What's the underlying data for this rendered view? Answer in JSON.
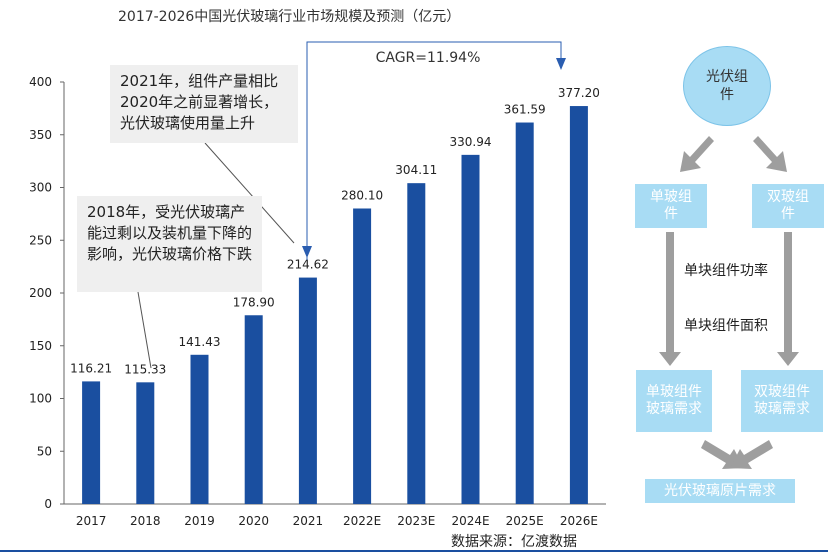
{
  "chart_data": {
    "type": "bar",
    "title": "2017-2026中国光伏玻璃行业市场规模及预测（亿元）",
    "categories": [
      "2017",
      "2018",
      "2019",
      "2020",
      "2021",
      "2022E",
      "2023E",
      "2024E",
      "2025E",
      "2026E"
    ],
    "values": [
      116.21,
      115.33,
      141.43,
      178.9,
      214.62,
      280.1,
      304.11,
      330.94,
      361.59,
      377.2
    ],
    "value_labels": [
      "116.21",
      "115.33",
      "141.43",
      "178.90",
      "214.62",
      "280.10",
      "304.11",
      "330.94",
      "361.59",
      "377.20"
    ],
    "ylim": [
      0,
      400
    ],
    "yticks": [
      0,
      50,
      100,
      150,
      200,
      250,
      300,
      350,
      400
    ],
    "grid": false,
    "xlabel": "",
    "ylabel": "",
    "bar_color": "#1a4fa0",
    "cagr_label": "CAGR=11.94%",
    "annotations": [
      "2021年，组件产量相比2020年之前显著增长，光伏玻璃使用量上升",
      "2018年，受光伏玻璃产能过剩以及装机量下降的影响，光伏玻璃价格下跌"
    ]
  },
  "flowchart": {
    "top": "光伏组件",
    "single_module": "单玻组件",
    "double_module": "双玻组件",
    "factor1": "单块组件功率",
    "factor2": "单块组件面积",
    "single_demand": "单玻组件玻璃需求",
    "double_demand": "双玻组件玻璃需求",
    "bottom": "光伏玻璃原片需求"
  },
  "source": "数据来源：亿渡数据",
  "colors": {
    "node": "#a8dcf4",
    "arrow": "#9e9e9e",
    "footer_line": "#1a4fa0"
  }
}
